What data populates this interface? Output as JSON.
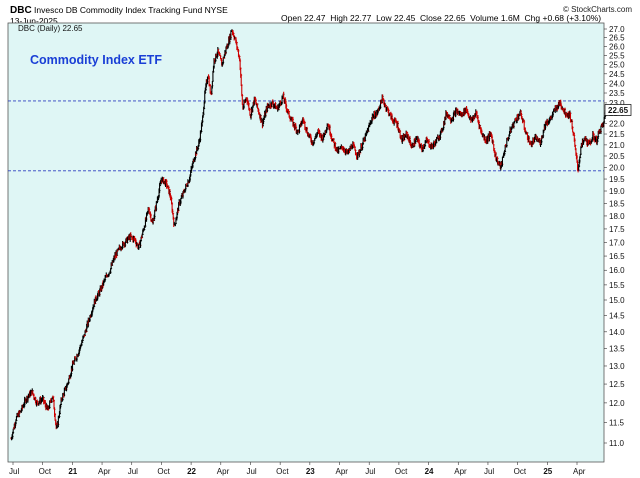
{
  "header": {
    "symbol": "DBC",
    "fund_name": "Invesco DB Commodity Index Tracking Fund",
    "exchange": "NYSE",
    "date": "13-Jun-2025",
    "brand": "© StockCharts.com",
    "open_label": "Open",
    "open": "22.47",
    "high_label": "High",
    "high": "22.77",
    "low_label": "Low",
    "low": "22.45",
    "close_label": "Close",
    "close": "22.65",
    "volume_label": "Volume",
    "volume": "1.6M",
    "chg_label": "Chg",
    "chg": "+0.68 (+3.10%)",
    "legend": "DBC (Daily) 22.65"
  },
  "colors": {
    "plot_bg": "#dff6f5",
    "down": "#cc0000",
    "up": "#000000",
    "hline": "#2f3fbf",
    "title": "#1a3fd6"
  },
  "chart_data": {
    "type": "line",
    "title": "Commodity Index ETF",
    "price_label": "22.65",
    "ylim": [
      10.5,
      27.3
    ],
    "y_scale": "log",
    "y_ticks": [
      "11.0",
      "11.5",
      "12.0",
      "12.5",
      "13.0",
      "13.5",
      "14.0",
      "14.5",
      "15.0",
      "15.5",
      "16.0",
      "16.5",
      "17.0",
      "17.5",
      "18.0",
      "18.5",
      "19.0",
      "19.5",
      "20.0",
      "20.5",
      "21.0",
      "21.5",
      "22.0",
      "22.5",
      "23.0",
      "23.5",
      "24.0",
      "24.5",
      "25.0",
      "25.5",
      "26.0",
      "26.5",
      "27.0"
    ],
    "x_ticks": [
      {
        "label": "Jul",
        "t": 0.0
      },
      {
        "label": "Oct",
        "t": 3.0
      },
      {
        "label": "21",
        "t": 6.0
      },
      {
        "label": "Apr",
        "t": 9.0
      },
      {
        "label": "Jul",
        "t": 12.0
      },
      {
        "label": "Oct",
        "t": 15.0
      },
      {
        "label": "22",
        "t": 18.0
      },
      {
        "label": "Apr",
        "t": 21.0
      },
      {
        "label": "Jul",
        "t": 24.0
      },
      {
        "label": "Oct",
        "t": 27.0
      },
      {
        "label": "23",
        "t": 30.0
      },
      {
        "label": "Apr",
        "t": 33.0
      },
      {
        "label": "Jul",
        "t": 36.0
      },
      {
        "label": "Oct",
        "t": 39.0
      },
      {
        "label": "24",
        "t": 42.0
      },
      {
        "label": "Apr",
        "t": 45.0
      },
      {
        "label": "Jul",
        "t": 48.0
      },
      {
        "label": "Oct",
        "t": 51.0
      },
      {
        "label": "25",
        "t": 54.0
      },
      {
        "label": "Apr",
        "t": 57.0
      }
    ],
    "horizontal_lines": [
      23.1,
      19.85
    ],
    "series": [
      {
        "points": [
          [
            -0.2,
            11.1
          ],
          [
            0.3,
            11.6
          ],
          [
            0.8,
            11.8
          ],
          [
            1.3,
            12.1
          ],
          [
            1.9,
            12.3
          ],
          [
            2.4,
            12.0
          ],
          [
            3.0,
            12.1
          ],
          [
            3.5,
            11.8
          ],
          [
            4.0,
            12.2
          ],
          [
            4.4,
            11.3
          ],
          [
            4.9,
            12.1
          ],
          [
            5.5,
            12.5
          ],
          [
            6.0,
            13.0
          ],
          [
            6.6,
            13.4
          ],
          [
            7.2,
            13.9
          ],
          [
            7.8,
            14.5
          ],
          [
            8.3,
            15.0
          ],
          [
            8.8,
            15.3
          ],
          [
            9.3,
            15.7
          ],
          [
            9.8,
            16.0
          ],
          [
            10.3,
            16.5
          ],
          [
            10.8,
            16.8
          ],
          [
            11.3,
            17.0
          ],
          [
            11.8,
            17.2
          ],
          [
            12.3,
            17.1
          ],
          [
            12.7,
            16.8
          ],
          [
            13.2,
            17.5
          ],
          [
            13.7,
            18.3
          ],
          [
            14.1,
            17.7
          ],
          [
            14.6,
            18.7
          ],
          [
            15.0,
            19.5
          ],
          [
            15.5,
            19.3
          ],
          [
            15.9,
            18.8
          ],
          [
            16.3,
            17.6
          ],
          [
            16.8,
            18.5
          ],
          [
            17.3,
            19.0
          ],
          [
            17.8,
            19.5
          ],
          [
            18.3,
            20.4
          ],
          [
            18.8,
            21.1
          ],
          [
            19.1,
            22.0
          ],
          [
            19.4,
            23.5
          ],
          [
            19.7,
            24.5
          ],
          [
            20.0,
            23.3
          ],
          [
            20.3,
            25.2
          ],
          [
            20.7,
            25.7
          ],
          [
            21.1,
            25.0
          ],
          [
            21.5,
            25.8
          ],
          [
            21.9,
            26.5
          ],
          [
            22.1,
            27.0
          ],
          [
            22.5,
            26.3
          ],
          [
            22.9,
            25.3
          ],
          [
            23.2,
            22.7
          ],
          [
            23.6,
            23.3
          ],
          [
            24.0,
            22.4
          ],
          [
            24.4,
            23.2
          ],
          [
            24.8,
            22.6
          ],
          [
            25.2,
            22.0
          ],
          [
            25.7,
            22.8
          ],
          [
            26.2,
            23.0
          ],
          [
            26.7,
            22.7
          ],
          [
            27.3,
            23.3
          ],
          [
            27.8,
            22.5
          ],
          [
            28.3,
            22.0
          ],
          [
            28.8,
            21.6
          ],
          [
            29.3,
            22.2
          ],
          [
            29.8,
            21.5
          ],
          [
            30.3,
            21.1
          ],
          [
            30.8,
            21.6
          ],
          [
            31.3,
            21.3
          ],
          [
            31.8,
            22.0
          ],
          [
            32.3,
            21.2
          ],
          [
            32.8,
            20.7
          ],
          [
            33.3,
            20.9
          ],
          [
            33.8,
            20.6
          ],
          [
            34.3,
            21.0
          ],
          [
            34.8,
            20.5
          ],
          [
            35.3,
            21.0
          ],
          [
            35.8,
            21.6
          ],
          [
            36.3,
            22.3
          ],
          [
            36.8,
            22.5
          ],
          [
            37.3,
            23.2
          ],
          [
            37.8,
            22.7
          ],
          [
            38.3,
            22.2
          ],
          [
            38.8,
            22.0
          ],
          [
            39.3,
            21.2
          ],
          [
            39.8,
            21.5
          ],
          [
            40.3,
            20.9
          ],
          [
            40.8,
            21.3
          ],
          [
            41.3,
            20.8
          ],
          [
            41.8,
            21.2
          ],
          [
            42.3,
            20.9
          ],
          [
            42.8,
            21.2
          ],
          [
            43.3,
            21.6
          ],
          [
            43.8,
            22.5
          ],
          [
            44.3,
            22.2
          ],
          [
            44.8,
            22.6
          ],
          [
            45.3,
            22.4
          ],
          [
            45.8,
            22.7
          ],
          [
            46.3,
            22.1
          ],
          [
            46.8,
            22.5
          ],
          [
            47.3,
            21.6
          ],
          [
            47.8,
            21.2
          ],
          [
            48.3,
            21.5
          ],
          [
            48.8,
            20.4
          ],
          [
            49.3,
            20.0
          ],
          [
            49.8,
            21.0
          ],
          [
            50.3,
            21.7
          ],
          [
            50.8,
            22.2
          ],
          [
            51.3,
            22.5
          ],
          [
            51.8,
            21.6
          ],
          [
            52.3,
            21.0
          ],
          [
            52.8,
            21.3
          ],
          [
            53.3,
            21.1
          ],
          [
            53.8,
            22.0
          ],
          [
            54.3,
            22.2
          ],
          [
            54.8,
            22.7
          ],
          [
            55.3,
            23.0
          ],
          [
            55.8,
            22.5
          ],
          [
            56.3,
            22.4
          ],
          [
            56.6,
            21.6
          ],
          [
            56.9,
            20.5
          ],
          [
            57.1,
            19.9
          ],
          [
            57.4,
            20.9
          ],
          [
            57.8,
            21.3
          ],
          [
            58.2,
            21.0
          ],
          [
            58.6,
            21.4
          ],
          [
            59.0,
            21.2
          ],
          [
            59.3,
            21.7
          ],
          [
            59.7,
            22.0
          ],
          [
            59.9,
            22.65
          ]
        ]
      }
    ]
  }
}
